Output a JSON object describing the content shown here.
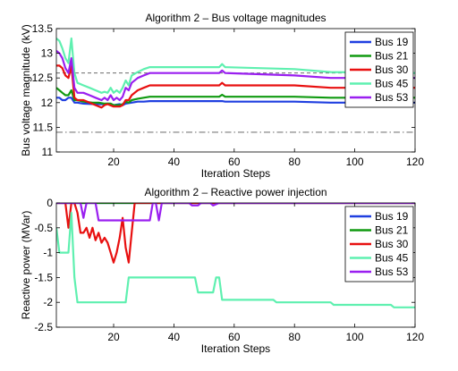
{
  "chart_data": [
    {
      "type": "line",
      "title": "Algorithm 2 – Bus voltage magnitudes",
      "xlabel": "Iteration Steps",
      "ylabel": "Bus voltage magnitude (kV)",
      "xlim": [
        1,
        120
      ],
      "ylim": [
        11,
        13.5
      ],
      "xticks": [
        20,
        40,
        60,
        80,
        100,
        120
      ],
      "yticks": [
        11,
        11.5,
        12,
        12.5,
        13,
        13.5
      ],
      "grid": false,
      "legend_position": "top-right",
      "reference_lines": [
        {
          "style": "dashed",
          "y": 12.6
        },
        {
          "style": "dash-dot",
          "y": 11.4
        }
      ],
      "series": [
        {
          "name": "Bus 19",
          "color": "#1f3fe0",
          "points": [
            [
              1,
              12.1
            ],
            [
              2,
              12.1
            ],
            [
              3,
              12.05
            ],
            [
              4,
              12.05
            ],
            [
              5,
              12.1
            ],
            [
              6,
              12.1
            ],
            [
              7,
              12.0
            ],
            [
              8,
              12.0
            ],
            [
              10,
              11.98
            ],
            [
              14,
              11.97
            ],
            [
              17,
              11.97
            ],
            [
              18,
              11.98
            ],
            [
              20,
              11.95
            ],
            [
              22,
              11.97
            ],
            [
              23,
              11.95
            ],
            [
              24,
              11.98
            ],
            [
              26,
              12.0
            ],
            [
              28,
              12.02
            ],
            [
              30,
              12.02
            ],
            [
              32,
              12.03
            ],
            [
              55,
              12.03
            ],
            [
              56,
              12.03
            ],
            [
              57,
              12.02
            ],
            [
              80,
              12.02
            ],
            [
              92,
              12.0
            ],
            [
              120,
              12.0
            ]
          ]
        },
        {
          "name": "Bus 21",
          "color": "#109a10",
          "points": [
            [
              1,
              12.3
            ],
            [
              2,
              12.25
            ],
            [
              3,
              12.2
            ],
            [
              4,
              12.15
            ],
            [
              5,
              12.15
            ],
            [
              6,
              12.25
            ],
            [
              7,
              12.05
            ],
            [
              8,
              12.05
            ],
            [
              10,
              12.02
            ],
            [
              13,
              12.0
            ],
            [
              15,
              12.0
            ],
            [
              17,
              11.98
            ],
            [
              19,
              11.98
            ],
            [
              20,
              11.95
            ],
            [
              22,
              11.95
            ],
            [
              23,
              11.97
            ],
            [
              24,
              12.02
            ],
            [
              25,
              12.0
            ],
            [
              26,
              12.05
            ],
            [
              28,
              12.08
            ],
            [
              30,
              12.1
            ],
            [
              32,
              12.12
            ],
            [
              40,
              12.12
            ],
            [
              48,
              12.12
            ],
            [
              55,
              12.12
            ],
            [
              56,
              12.16
            ],
            [
              57,
              12.12
            ],
            [
              80,
              12.12
            ],
            [
              92,
              12.1
            ],
            [
              120,
              12.1
            ]
          ]
        },
        {
          "name": "Bus 30",
          "color": "#e81010",
          "points": [
            [
              1,
              12.75
            ],
            [
              2,
              12.75
            ],
            [
              3,
              12.7
            ],
            [
              4,
              12.55
            ],
            [
              5,
              12.5
            ],
            [
              6,
              12.75
            ],
            [
              7,
              12.1
            ],
            [
              8,
              12.05
            ],
            [
              10,
              12.05
            ],
            [
              12,
              12.0
            ],
            [
              14,
              11.95
            ],
            [
              16,
              11.9
            ],
            [
              17,
              11.95
            ],
            [
              18,
              11.97
            ],
            [
              20,
              11.92
            ],
            [
              21,
              11.92
            ],
            [
              22,
              11.92
            ],
            [
              23,
              11.95
            ],
            [
              24,
              12.05
            ],
            [
              25,
              12.05
            ],
            [
              26,
              12.15
            ],
            [
              28,
              12.25
            ],
            [
              30,
              12.3
            ],
            [
              32,
              12.35
            ],
            [
              48,
              12.35
            ],
            [
              55,
              12.35
            ],
            [
              56,
              12.4
            ],
            [
              57,
              12.35
            ],
            [
              80,
              12.35
            ],
            [
              92,
              12.3
            ],
            [
              120,
              12.3
            ]
          ]
        },
        {
          "name": "Bus 45",
          "color": "#5ff0b0",
          "points": [
            [
              1,
              13.3
            ],
            [
              2,
              13.25
            ],
            [
              3,
              13.1
            ],
            [
              4,
              12.9
            ],
            [
              5,
              12.8
            ],
            [
              6,
              13.3
            ],
            [
              7,
              12.6
            ],
            [
              8,
              12.4
            ],
            [
              10,
              12.35
            ],
            [
              12,
              12.3
            ],
            [
              14,
              12.25
            ],
            [
              16,
              12.2
            ],
            [
              17,
              12.22
            ],
            [
              18,
              12.2
            ],
            [
              19,
              12.3
            ],
            [
              20,
              12.2
            ],
            [
              21,
              12.25
            ],
            [
              22,
              12.2
            ],
            [
              23,
              12.3
            ],
            [
              24,
              12.45
            ],
            [
              25,
              12.35
            ],
            [
              26,
              12.55
            ],
            [
              28,
              12.62
            ],
            [
              30,
              12.68
            ],
            [
              32,
              12.72
            ],
            [
              48,
              12.72
            ],
            [
              55,
              12.72
            ],
            [
              56,
              12.78
            ],
            [
              57,
              12.72
            ],
            [
              80,
              12.68
            ],
            [
              92,
              12.62
            ],
            [
              120,
              12.6
            ]
          ]
        },
        {
          "name": "Bus 53",
          "color": "#9a1ff0",
          "points": [
            [
              1,
              13.05
            ],
            [
              2,
              13.0
            ],
            [
              3,
              12.9
            ],
            [
              4,
              12.7
            ],
            [
              5,
              12.6
            ],
            [
              6,
              12.9
            ],
            [
              7,
              12.3
            ],
            [
              8,
              12.2
            ],
            [
              10,
              12.2
            ],
            [
              12,
              12.15
            ],
            [
              14,
              12.1
            ],
            [
              16,
              12.05
            ],
            [
              17,
              12.1
            ],
            [
              18,
              12.05
            ],
            [
              19,
              12.15
            ],
            [
              20,
              12.05
            ],
            [
              21,
              12.1
            ],
            [
              22,
              12.05
            ],
            [
              23,
              12.12
            ],
            [
              24,
              12.3
            ],
            [
              25,
              12.25
            ],
            [
              26,
              12.4
            ],
            [
              28,
              12.5
            ],
            [
              30,
              12.55
            ],
            [
              32,
              12.6
            ],
            [
              48,
              12.6
            ],
            [
              55,
              12.6
            ],
            [
              56,
              12.65
            ],
            [
              57,
              12.6
            ],
            [
              80,
              12.55
            ],
            [
              92,
              12.5
            ],
            [
              120,
              12.5
            ]
          ]
        }
      ]
    },
    {
      "type": "line",
      "title": "Algorithm 2 – Reactive power injection",
      "xlabel": "Iteration Steps",
      "ylabel": "Reactive power (MVar)",
      "xlim": [
        1,
        120
      ],
      "ylim": [
        -2.5,
        0
      ],
      "xticks": [
        20,
        40,
        60,
        80,
        100,
        120
      ],
      "yticks": [
        -2.5,
        -2,
        -1.5,
        -1,
        -0.5,
        0
      ],
      "grid": false,
      "legend_position": "top-right",
      "series": [
        {
          "name": "Bus 19",
          "color": "#1f3fe0",
          "points": [
            [
              1,
              0
            ],
            [
              120,
              0
            ]
          ]
        },
        {
          "name": "Bus 21",
          "color": "#109a10",
          "points": [
            [
              1,
              0
            ],
            [
              120,
              0
            ]
          ]
        },
        {
          "name": "Bus 30",
          "color": "#e81010",
          "points": [
            [
              1,
              0
            ],
            [
              4,
              0
            ],
            [
              5,
              -0.5
            ],
            [
              6,
              0
            ],
            [
              7,
              0
            ],
            [
              8,
              -0.2
            ],
            [
              9,
              -0.6
            ],
            [
              10,
              -0.6
            ],
            [
              11,
              -0.5
            ],
            [
              12,
              -0.7
            ],
            [
              13,
              -0.5
            ],
            [
              14,
              -0.75
            ],
            [
              15,
              -0.6
            ],
            [
              16,
              -0.8
            ],
            [
              17,
              -0.7
            ],
            [
              18,
              -0.8
            ],
            [
              19,
              -1.0
            ],
            [
              20,
              -1.2
            ],
            [
              21,
              -1.0
            ],
            [
              22,
              -0.7
            ],
            [
              23,
              -0.3
            ],
            [
              24,
              -0.9
            ],
            [
              25,
              -1.2
            ],
            [
              26,
              -0.6
            ],
            [
              27,
              0
            ],
            [
              120,
              0
            ]
          ]
        },
        {
          "name": "Bus 45",
          "color": "#5ff0b0",
          "points": [
            [
              1,
              -0.5
            ],
            [
              2,
              -1.0
            ],
            [
              4,
              -1.0
            ],
            [
              5,
              -1.0
            ],
            [
              6,
              -0.2
            ],
            [
              7,
              -1.5
            ],
            [
              8,
              -2.0
            ],
            [
              9,
              -2.0
            ],
            [
              24,
              -2.0
            ],
            [
              25,
              -1.5
            ],
            [
              47,
              -1.5
            ],
            [
              48,
              -1.8
            ],
            [
              53,
              -1.8
            ],
            [
              54,
              -1.5
            ],
            [
              55,
              -1.5
            ],
            [
              56,
              -1.95
            ],
            [
              73,
              -1.95
            ],
            [
              74,
              -2.0
            ],
            [
              92,
              -2.0
            ],
            [
              93,
              -2.05
            ],
            [
              112,
              -2.05
            ],
            [
              113,
              -2.1
            ],
            [
              120,
              -2.1
            ]
          ]
        },
        {
          "name": "Bus 53",
          "color": "#9a1ff0",
          "points": [
            [
              1,
              0
            ],
            [
              9,
              0
            ],
            [
              10,
              -0.3
            ],
            [
              11,
              0
            ],
            [
              14,
              0
            ],
            [
              15,
              -0.35
            ],
            [
              16,
              -0.35
            ],
            [
              32,
              -0.35
            ],
            [
              33,
              0
            ],
            [
              34,
              0
            ],
            [
              35,
              -0.35
            ],
            [
              36,
              0
            ],
            [
              45,
              0
            ],
            [
              46,
              -0.05
            ],
            [
              48,
              -0.05
            ],
            [
              49,
              0
            ],
            [
              52,
              0
            ],
            [
              53,
              -0.05
            ],
            [
              55,
              0
            ],
            [
              120,
              0
            ]
          ]
        }
      ]
    }
  ]
}
